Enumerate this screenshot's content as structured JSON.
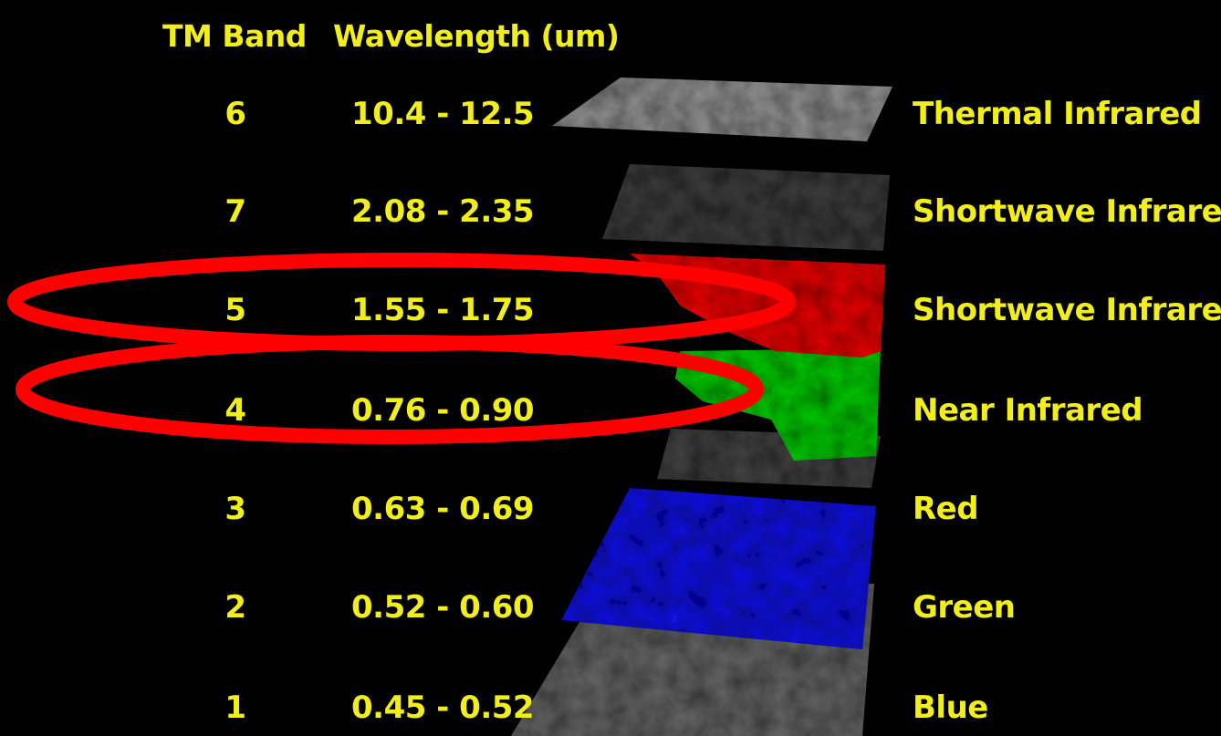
{
  "header": {
    "band_label": "TM Band",
    "wavelength_label": "Wavelength (um)"
  },
  "bands": [
    {
      "band": "6",
      "wavelength": "10.4 - 12.5",
      "name": "Thermal Infrared",
      "color": "#8a8a8a"
    },
    {
      "band": "7",
      "wavelength": "2.08 - 2.35",
      "name": "Shortwave Infrared",
      "color": "#3a3a3a"
    },
    {
      "band": "5",
      "wavelength": "1.55 - 1.75",
      "name": "Shortwave Infrared",
      "color": "#e01010"
    },
    {
      "band": "4",
      "wavelength": "0.76 - 0.90",
      "name": "Near Infrared",
      "color": "#10c010"
    },
    {
      "band": "3",
      "wavelength": "0.63 - 0.69",
      "name": "Red",
      "color": "#404040"
    },
    {
      "band": "2",
      "wavelength": "0.52 - 0.60",
      "name": "Green",
      "color": "#1414d8"
    },
    {
      "band": "1",
      "wavelength": "0.45 - 0.52",
      "name": "Blue",
      "color": "#606060"
    }
  ],
  "highlight": {
    "color": "#ff0000",
    "bands": [
      "5",
      "4"
    ]
  }
}
